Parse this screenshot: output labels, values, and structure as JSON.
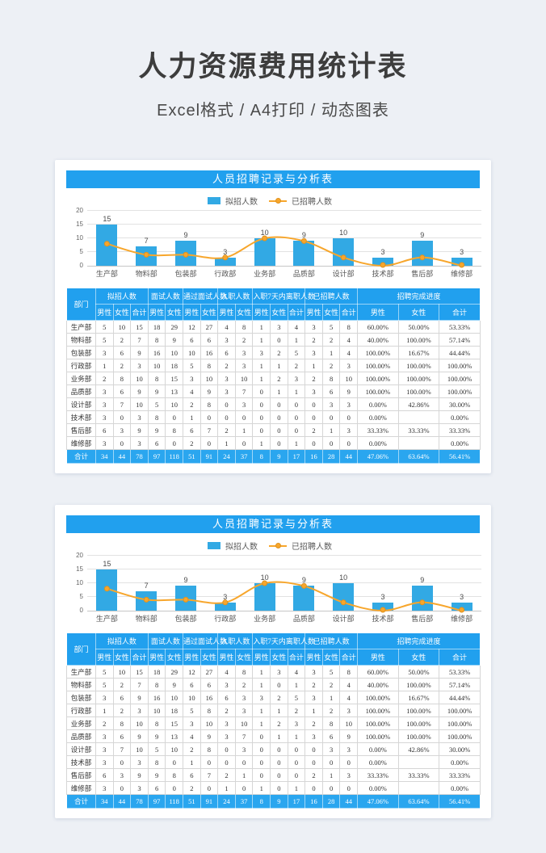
{
  "page": {
    "title": "人力资源费用统计表",
    "subtitle": "Excel格式 / A4打印 / 动态图表"
  },
  "colors": {
    "page_bg": "#edf0f5",
    "banner_blue": "#21a0ee",
    "bar_blue": "#32a9e4",
    "line_orange": "#f7a62c",
    "total_row_blue": "#2aa6ef"
  },
  "panel": {
    "chart_title": "人员招聘记录与分析表",
    "legend": {
      "bar_label": "拟招人数",
      "line_label": "已招聘人数"
    },
    "ylim": [
      0,
      20
    ],
    "yticks": [
      0,
      5,
      10,
      15,
      20
    ],
    "categories": [
      "生产部",
      "物料部",
      "包装部",
      "行政部",
      "业务部",
      "品质部",
      "设计部",
      "技术部",
      "售后部",
      "维修部"
    ],
    "bar_values": [
      15,
      7,
      9,
      3,
      10,
      9,
      10,
      3,
      9,
      3
    ],
    "line_values": [
      8,
      4,
      4,
      3,
      10,
      9,
      3,
      0,
      3,
      0
    ],
    "table": {
      "corner_header": "部门",
      "groups": [
        {
          "label": "拟招人数",
          "cols": [
            "男性",
            "女性",
            "合计"
          ]
        },
        {
          "label": "面试人数",
          "cols": [
            "男性",
            "女性"
          ]
        },
        {
          "label": "通过面试人数",
          "cols": [
            "男性",
            "女性"
          ]
        },
        {
          "label": "入职人数",
          "cols": [
            "男性",
            "女性"
          ]
        },
        {
          "label": "入职7天内离职人数",
          "cols": [
            "男性",
            "女性",
            "合计"
          ]
        },
        {
          "label": "已招聘人数",
          "cols": [
            "男性",
            "女性",
            "合计"
          ]
        },
        {
          "label": "招聘完成进度",
          "cols": [
            "男性",
            "女性",
            "合计"
          ]
        }
      ],
      "rows": [
        {
          "dept": "生产部",
          "values": [
            5,
            10,
            15,
            18,
            29,
            12,
            27,
            4,
            8,
            1,
            3,
            4,
            3,
            5,
            8,
            "60.00%",
            "50.00%",
            "53.33%"
          ]
        },
        {
          "dept": "物料部",
          "values": [
            5,
            2,
            7,
            8,
            9,
            6,
            6,
            3,
            2,
            1,
            0,
            1,
            2,
            2,
            4,
            "40.00%",
            "100.00%",
            "57.14%"
          ]
        },
        {
          "dept": "包装部",
          "values": [
            3,
            6,
            9,
            16,
            10,
            10,
            16,
            6,
            3,
            3,
            2,
            5,
            3,
            1,
            4,
            "100.00%",
            "16.67%",
            "44.44%"
          ]
        },
        {
          "dept": "行政部",
          "values": [
            1,
            2,
            3,
            10,
            18,
            5,
            8,
            2,
            3,
            1,
            1,
            2,
            1,
            2,
            3,
            "100.00%",
            "100.00%",
            "100.00%"
          ]
        },
        {
          "dept": "业务部",
          "values": [
            2,
            8,
            10,
            8,
            15,
            3,
            10,
            3,
            10,
            1,
            2,
            3,
            2,
            8,
            10,
            "100.00%",
            "100.00%",
            "100.00%"
          ]
        },
        {
          "dept": "品质部",
          "values": [
            3,
            6,
            9,
            9,
            13,
            4,
            9,
            3,
            7,
            0,
            1,
            1,
            3,
            6,
            9,
            "100.00%",
            "100.00%",
            "100.00%"
          ]
        },
        {
          "dept": "设计部",
          "values": [
            3,
            7,
            10,
            5,
            10,
            2,
            8,
            0,
            3,
            0,
            0,
            0,
            0,
            3,
            3,
            "0.00%",
            "42.86%",
            "30.00%"
          ]
        },
        {
          "dept": "技术部",
          "values": [
            3,
            0,
            3,
            8,
            0,
            1,
            0,
            0,
            0,
            0,
            0,
            0,
            0,
            0,
            0,
            "0.00%",
            "",
            "0.00%"
          ]
        },
        {
          "dept": "售后部",
          "values": [
            6,
            3,
            9,
            9,
            8,
            6,
            7,
            2,
            1,
            0,
            0,
            0,
            2,
            1,
            3,
            "33.33%",
            "33.33%",
            "33.33%"
          ]
        },
        {
          "dept": "维修部",
          "values": [
            3,
            0,
            3,
            6,
            0,
            2,
            0,
            1,
            0,
            1,
            0,
            1,
            0,
            0,
            0,
            "0.00%",
            "",
            "0.00%"
          ]
        }
      ],
      "total": {
        "label": "合计",
        "values": [
          34,
          44,
          78,
          97,
          118,
          51,
          91,
          24,
          37,
          8,
          9,
          17,
          16,
          28,
          44,
          "47.06%",
          "63.64%",
          "56.41%"
        ]
      }
    }
  },
  "chart_data": [
    {
      "type": "bar",
      "title": "人员招聘记录与分析表",
      "categories": [
        "生产部",
        "物料部",
        "包装部",
        "行政部",
        "业务部",
        "品质部",
        "设计部",
        "技术部",
        "售后部",
        "维修部"
      ],
      "series": [
        {
          "name": "拟招人数",
          "type": "bar",
          "values": [
            15,
            7,
            9,
            3,
            10,
            9,
            10,
            3,
            9,
            3
          ]
        },
        {
          "name": "已招聘人数",
          "type": "line",
          "values": [
            8,
            4,
            4,
            3,
            10,
            9,
            3,
            0,
            3,
            0
          ]
        }
      ],
      "xlabel": "",
      "ylabel": "",
      "ylim": [
        0,
        20
      ],
      "yticks": [
        0,
        5,
        10,
        15,
        20
      ],
      "grid": true,
      "legend_position": "top-center"
    },
    {
      "type": "bar",
      "title": "人员招聘记录与分析表",
      "categories": [
        "生产部",
        "物料部",
        "包装部",
        "行政部",
        "业务部",
        "品质部",
        "设计部",
        "技术部",
        "售后部",
        "维修部"
      ],
      "series": [
        {
          "name": "拟招人数",
          "type": "bar",
          "values": [
            15,
            7,
            9,
            3,
            10,
            9,
            10,
            3,
            9,
            3
          ]
        },
        {
          "name": "已招聘人数",
          "type": "line",
          "values": [
            8,
            4,
            4,
            3,
            10,
            9,
            3,
            0,
            3,
            0
          ]
        }
      ],
      "xlabel": "",
      "ylabel": "",
      "ylim": [
        0,
        20
      ],
      "yticks": [
        0,
        5,
        10,
        15,
        20
      ],
      "grid": true,
      "legend_position": "top-center"
    }
  ]
}
